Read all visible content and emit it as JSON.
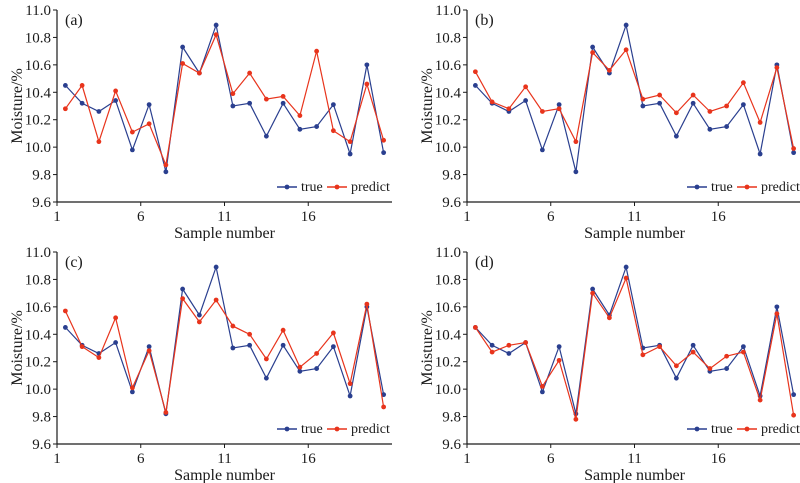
{
  "colors": {
    "true": "#2a3f8f",
    "predict": "#e8341c",
    "axis": "#1a1a1a"
  },
  "chart_data": [
    {
      "type": "line",
      "panel_label": "(a)",
      "xlabel": "Sample number",
      "ylabel": "Moisture/%",
      "ylim": [
        9.6,
        11.0
      ],
      "yticks": [
        "9.6",
        "9.8",
        "10.0",
        "10.2",
        "10.4",
        "10.6",
        "10.8",
        "11.0"
      ],
      "xticks": [
        "1",
        "6",
        "11",
        "16"
      ],
      "xlim": [
        1,
        21
      ],
      "x": [
        1,
        2,
        3,
        4,
        5,
        6,
        7,
        8,
        9,
        10,
        11,
        12,
        13,
        14,
        15,
        16,
        17,
        18,
        19,
        20
      ],
      "legend": [
        "true",
        "predict"
      ],
      "legend_position": "bottom-right",
      "series": [
        {
          "name": "true",
          "values": [
            10.45,
            10.32,
            10.26,
            10.34,
            9.98,
            10.31,
            9.82,
            10.73,
            10.54,
            10.89,
            10.3,
            10.32,
            10.08,
            10.32,
            10.13,
            10.15,
            10.31,
            9.95,
            10.6,
            9.96
          ]
        },
        {
          "name": "predict",
          "values": [
            10.28,
            10.45,
            10.04,
            10.41,
            10.11,
            10.17,
            9.87,
            10.61,
            10.54,
            10.82,
            10.39,
            10.54,
            10.35,
            10.37,
            10.23,
            10.7,
            10.12,
            10.04,
            10.46,
            10.05
          ]
        }
      ]
    },
    {
      "type": "line",
      "panel_label": "(b)",
      "xlabel": "Sample number",
      "ylabel": "Moisture/%",
      "ylim": [
        9.6,
        11.0
      ],
      "yticks": [
        "9.6",
        "9.8",
        "10.0",
        "10.2",
        "10.4",
        "10.6",
        "10.8",
        "11.0"
      ],
      "xticks": [
        "1",
        "6",
        "11",
        "16"
      ],
      "xlim": [
        1,
        21
      ],
      "x": [
        1,
        2,
        3,
        4,
        5,
        6,
        7,
        8,
        9,
        10,
        11,
        12,
        13,
        14,
        15,
        16,
        17,
        18,
        19,
        20
      ],
      "legend": [
        "true",
        "predict"
      ],
      "legend_position": "bottom-right",
      "series": [
        {
          "name": "true",
          "values": [
            10.45,
            10.32,
            10.26,
            10.34,
            9.98,
            10.31,
            9.82,
            10.73,
            10.54,
            10.89,
            10.3,
            10.32,
            10.08,
            10.32,
            10.13,
            10.15,
            10.31,
            9.95,
            10.6,
            9.96
          ]
        },
        {
          "name": "predict",
          "values": [
            10.55,
            10.33,
            10.28,
            10.44,
            10.26,
            10.28,
            10.04,
            10.69,
            10.56,
            10.71,
            10.35,
            10.38,
            10.25,
            10.38,
            10.26,
            10.3,
            10.47,
            10.18,
            10.58,
            9.99
          ]
        }
      ]
    },
    {
      "type": "line",
      "panel_label": "(c)",
      "xlabel": "Sample number",
      "ylabel": "Moisture/%",
      "ylim": [
        9.6,
        11.0
      ],
      "yticks": [
        "9.6",
        "9.8",
        "10.0",
        "10.2",
        "10.4",
        "10.6",
        "10.8",
        "11.0"
      ],
      "xticks": [
        "1",
        "6",
        "11",
        "16"
      ],
      "xlim": [
        1,
        21
      ],
      "x": [
        1,
        2,
        3,
        4,
        5,
        6,
        7,
        8,
        9,
        10,
        11,
        12,
        13,
        14,
        15,
        16,
        17,
        18,
        19,
        20
      ],
      "legend": [
        "true",
        "predict"
      ],
      "legend_position": "bottom-right",
      "series": [
        {
          "name": "true",
          "values": [
            10.45,
            10.32,
            10.26,
            10.34,
            9.98,
            10.31,
            9.82,
            10.73,
            10.54,
            10.89,
            10.3,
            10.32,
            10.08,
            10.32,
            10.13,
            10.15,
            10.31,
            9.95,
            10.6,
            9.96
          ]
        },
        {
          "name": "predict",
          "values": [
            10.57,
            10.31,
            10.23,
            10.52,
            10.01,
            10.28,
            9.83,
            10.66,
            10.49,
            10.65,
            10.46,
            10.4,
            10.22,
            10.43,
            10.16,
            10.26,
            10.41,
            10.04,
            10.62,
            9.87
          ]
        }
      ]
    },
    {
      "type": "line",
      "panel_label": "(d)",
      "xlabel": "Sample number",
      "ylabel": "Moisture/%",
      "ylim": [
        9.6,
        11.0
      ],
      "yticks": [
        "9.6",
        "9.8",
        "10.0",
        "10.2",
        "10.4",
        "10.6",
        "10.8",
        "11.0"
      ],
      "xticks": [
        "1",
        "6",
        "11",
        "16"
      ],
      "xlim": [
        1,
        21
      ],
      "x": [
        1,
        2,
        3,
        4,
        5,
        6,
        7,
        8,
        9,
        10,
        11,
        12,
        13,
        14,
        15,
        16,
        17,
        18,
        19,
        20
      ],
      "legend": [
        "true",
        "predict"
      ],
      "legend_position": "bottom-right",
      "series": [
        {
          "name": "true",
          "values": [
            10.45,
            10.32,
            10.26,
            10.34,
            9.98,
            10.31,
            9.82,
            10.73,
            10.54,
            10.89,
            10.3,
            10.32,
            10.08,
            10.32,
            10.13,
            10.15,
            10.31,
            9.95,
            10.6,
            9.96
          ]
        },
        {
          "name": "predict",
          "values": [
            10.45,
            10.27,
            10.32,
            10.34,
            10.02,
            10.21,
            9.78,
            10.7,
            10.52,
            10.81,
            10.25,
            10.31,
            10.17,
            10.27,
            10.15,
            10.24,
            10.27,
            9.92,
            10.55,
            9.81
          ]
        }
      ]
    }
  ]
}
